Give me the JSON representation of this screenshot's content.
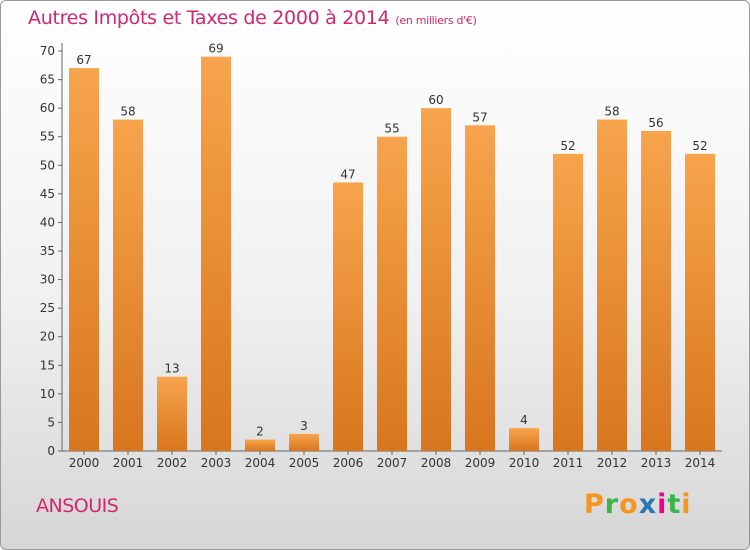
{
  "chart_data": {
    "type": "bar",
    "title": "Autres Impôts et Taxes de 2000 à 2014",
    "unit_note": "(en milliers d'€)",
    "categories": [
      "2000",
      "2001",
      "2002",
      "2003",
      "2004",
      "2005",
      "2006",
      "2007",
      "2008",
      "2009",
      "2010",
      "2011",
      "2012",
      "2013",
      "2014"
    ],
    "values": [
      67,
      58,
      13,
      69,
      2,
      3,
      47,
      55,
      60,
      57,
      4,
      52,
      58,
      56,
      52
    ],
    "ylim": [
      0,
      70
    ],
    "yticks": [
      0,
      5,
      10,
      15,
      20,
      25,
      30,
      35,
      40,
      45,
      50,
      55,
      60,
      65,
      70
    ],
    "grid": false,
    "bar_color": "#f0a040"
  },
  "commune": "ANSOUIS",
  "brand": {
    "text": "Proxiti",
    "colors": [
      "#f7941d",
      "#39b54a",
      "#f7941d",
      "#2e75b6",
      "#ec008c",
      "#39b54a",
      "#f7941d"
    ]
  }
}
